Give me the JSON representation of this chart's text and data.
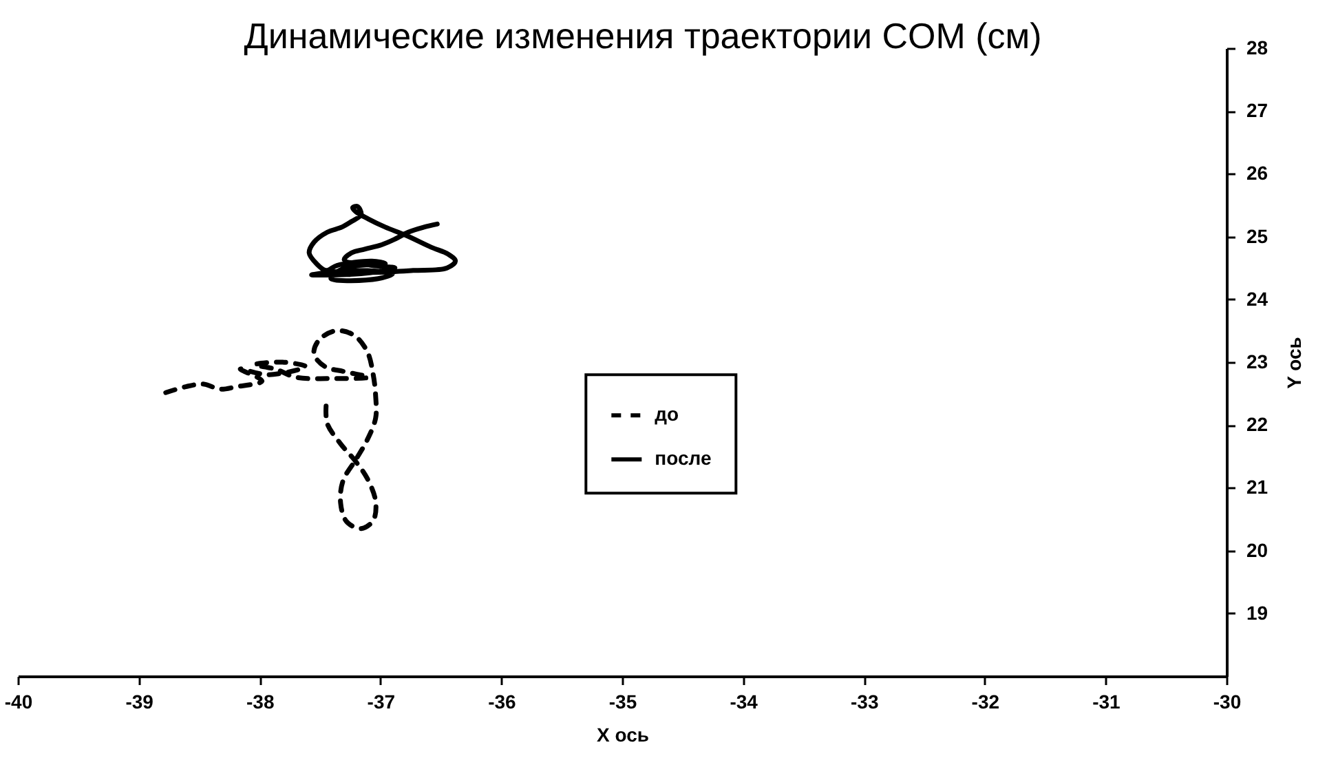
{
  "chart_data": {
    "type": "line",
    "title": "Динамические изменения траектории COM (см)",
    "xlabel": "X ось",
    "ylabel": "Y ось",
    "xlim": [
      -40,
      -30
    ],
    "xticks": [
      -40,
      -39,
      -38,
      -37,
      -36,
      -35,
      -34,
      -33,
      -32,
      -31,
      -30
    ],
    "ylim": [
      18,
      28
    ],
    "yticks": [
      19,
      20,
      21,
      22,
      23,
      24,
      25,
      26,
      27,
      28
    ],
    "legend": "center",
    "marker": "none",
    "series": [
      {
        "name": "до",
        "color": "#000000",
        "line_style": "dashed",
        "x": [
          -37.45,
          -37.44,
          -37.33,
          -37.21,
          -37.11,
          -37.04,
          -37.06,
          -37.16,
          -37.28,
          -37.33,
          -37.31,
          -37.2,
          -37.11,
          -37.04,
          -37.04,
          -37.06,
          -37.11,
          -37.22,
          -37.37,
          -37.51,
          -37.55,
          -37.46,
          -37.3,
          -37.1,
          -37.41,
          -37.7,
          -37.87,
          -38.04,
          -37.81,
          -37.62,
          -37.93,
          -38.16,
          -37.98,
          -38.19,
          -38.33,
          -38.46,
          -38.61,
          -38.8
        ],
        "values": [
          22.3,
          22.02,
          21.7,
          21.43,
          21.15,
          20.78,
          20.48,
          20.35,
          20.46,
          20.76,
          21.11,
          21.46,
          21.76,
          22.11,
          22.46,
          22.8,
          23.17,
          23.43,
          23.5,
          23.35,
          23.13,
          22.93,
          22.85,
          22.76,
          22.74,
          22.76,
          22.89,
          22.96,
          23.0,
          22.93,
          22.8,
          22.89,
          22.7,
          22.61,
          22.57,
          22.65,
          22.61,
          22.5
        ]
      },
      {
        "name": "после",
        "color": "#000000",
        "line_style": "solid",
        "x": [
          -36.53,
          -36.64,
          -36.77,
          -36.88,
          -36.99,
          -37.13,
          -37.24,
          -37.3,
          -37.07,
          -36.88,
          -37.16,
          -37.57,
          -37.21,
          -36.9,
          -37.02,
          -37.41,
          -37.3,
          -36.96,
          -37.07,
          -37.36,
          -37.45,
          -37.53,
          -37.59,
          -37.55,
          -37.44,
          -37.32,
          -37.24,
          -37.16,
          -37.19,
          -37.23,
          -37.2,
          -37.1,
          -36.96,
          -36.79,
          -36.58,
          -36.44,
          -36.38,
          -36.45,
          -36.73,
          -37.02,
          -37.3,
          -37.47
        ],
        "values": [
          25.2,
          25.15,
          25.07,
          24.96,
          24.87,
          24.8,
          24.74,
          24.63,
          24.54,
          24.5,
          24.41,
          24.39,
          24.46,
          24.41,
          24.33,
          24.33,
          24.5,
          24.57,
          24.61,
          24.54,
          24.46,
          24.57,
          24.74,
          24.91,
          25.07,
          25.15,
          25.24,
          25.35,
          25.48,
          25.46,
          25.39,
          25.28,
          25.15,
          25.02,
          24.83,
          24.72,
          24.61,
          24.5,
          24.46,
          24.43,
          24.43,
          24.41
        ]
      }
    ]
  }
}
